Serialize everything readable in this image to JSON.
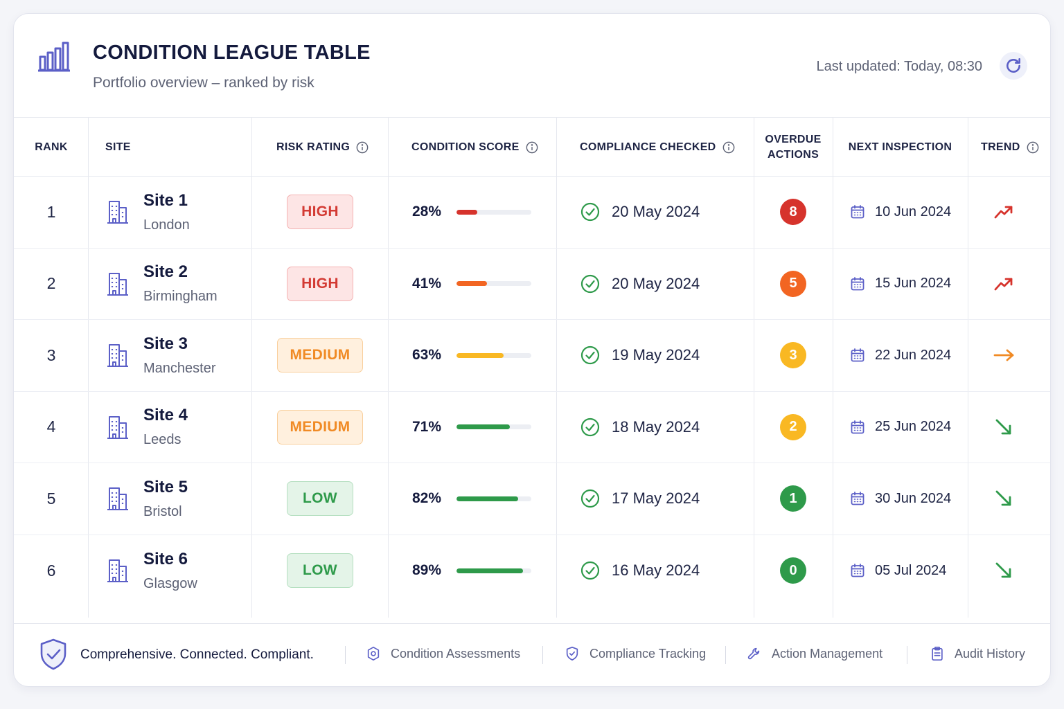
{
  "header": {
    "title": "CONDITION LEAGUE TABLE",
    "subtitle": "Portfolio overview – ranked by risk",
    "last_updated": "Last updated: Today, 08:30",
    "refresh_icon": "refresh-icon",
    "logo_icon": "bar-chart-icon"
  },
  "columns": {
    "rank": "RANK",
    "site": "SITE",
    "risk": "RISK RATING",
    "score": "CONDITION SCORE",
    "compliance": "COMPLIANCE CHECKED",
    "overdue_1": "OVERDUE",
    "overdue_2": "ACTIONS",
    "next": "NEXT INSPECTION",
    "trend": "TREND"
  },
  "colors": {
    "accent": "#5b5fc7",
    "high": "#d33a33",
    "medium": "#f08a24",
    "low": "#2e9a4a"
  },
  "rows": [
    {
      "rank": "1",
      "site": "Site 1",
      "city": "London",
      "risk": "HIGH",
      "score_label": "28%",
      "score": 28,
      "bar_color": "#d6332c",
      "compliance": "20 May 2024",
      "overdue": "8",
      "overdue_color": "#d6332c",
      "next": "10 Jun 2024",
      "trend": "up"
    },
    {
      "rank": "2",
      "site": "Site 2",
      "city": "Birmingham",
      "risk": "HIGH",
      "score_label": "41%",
      "score": 41,
      "bar_color": "#f26522",
      "compliance": "20 May 2024",
      "overdue": "5",
      "overdue_color": "#f26522",
      "next": "15 Jun 2024",
      "trend": "up"
    },
    {
      "rank": "3",
      "site": "Site 3",
      "city": "Manchester",
      "risk": "MEDIUM",
      "score_label": "63%",
      "score": 63,
      "bar_color": "#f9b823",
      "compliance": "19 May 2024",
      "overdue": "3",
      "overdue_color": "#f9b823",
      "next": "22 Jun 2024",
      "trend": "flat"
    },
    {
      "rank": "4",
      "site": "Site 4",
      "city": "Leeds",
      "risk": "MEDIUM",
      "score_label": "71%",
      "score": 71,
      "bar_color": "#2e9a4a",
      "compliance": "18 May 2024",
      "overdue": "2",
      "overdue_color": "#f9b823",
      "next": "25 Jun 2024",
      "trend": "down"
    },
    {
      "rank": "5",
      "site": "Site 5",
      "city": "Bristol",
      "risk": "LOW",
      "score_label": "82%",
      "score": 82,
      "bar_color": "#2e9a4a",
      "compliance": "17 May 2024",
      "overdue": "1",
      "overdue_color": "#2e9a4a",
      "next": "30 Jun 2024",
      "trend": "down"
    },
    {
      "rank": "6",
      "site": "Site 6",
      "city": "Glasgow",
      "risk": "LOW",
      "score_label": "89%",
      "score": 89,
      "bar_color": "#2e9a4a",
      "compliance": "16 May 2024",
      "overdue": "0",
      "overdue_color": "#2e9a4a",
      "next": "05 Jul 2024",
      "trend": "down"
    }
  ],
  "footer": {
    "tagline": "Comprehensive. Connected. Compliant.",
    "links": [
      "Condition Assessments",
      "Compliance Tracking",
      "Action Management",
      "Audit History"
    ]
  }
}
